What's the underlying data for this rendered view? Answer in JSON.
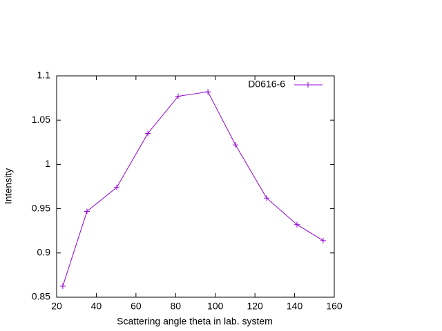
{
  "chart_data": {
    "type": "line",
    "xlabel": "Scattering angle theta in lab. system",
    "ylabel": "Intensity",
    "x": [
      23.1,
      35.3,
      50.3,
      66,
      81.3,
      96.3,
      110.2,
      125.9,
      141.2,
      154.4
    ],
    "series": [
      {
        "name": "D0616-6",
        "color": "#9400d3",
        "values": [
          0.8625,
          0.947,
          0.974,
          1.035,
          1.077,
          1.082,
          1.022,
          0.962,
          0.932,
          0.914
        ]
      }
    ],
    "xlim": [
      20,
      160
    ],
    "xticks": [
      20,
      40,
      60,
      80,
      100,
      120,
      140,
      160
    ],
    "ylim": [
      0.85,
      1.1
    ],
    "yticks": [
      0.85,
      0.9,
      0.95,
      1,
      1.05,
      1.1
    ],
    "legend": "top-right",
    "grid": false
  }
}
